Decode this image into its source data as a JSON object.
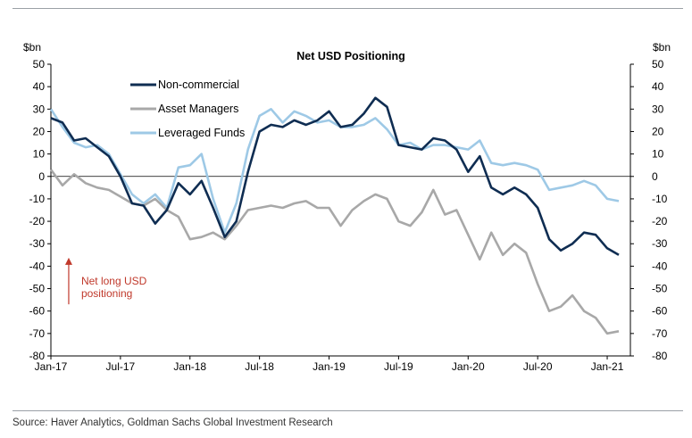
{
  "source": "Source: Haver Analytics, Goldman Sachs Global Investment Research",
  "chart_data": {
    "type": "line",
    "title": "Net USD Positioning",
    "ylabel_left": "$bn",
    "ylabel_right": "$bn",
    "ylim": [
      -80,
      50
    ],
    "yticks": [
      50,
      40,
      30,
      20,
      10,
      0,
      -10,
      -20,
      -30,
      -40,
      -50,
      -60,
      -70,
      -80
    ],
    "xlim": [
      "2017-01",
      "2021-03"
    ],
    "xticks": [
      "Jan-17",
      "Jul-17",
      "Jan-18",
      "Jul-18",
      "Jan-19",
      "Jul-19",
      "Jan-20",
      "Jul-20",
      "Jan-21"
    ],
    "legend_position": "top-left",
    "annotation": {
      "lines": [
        "Net long USD",
        "positioning"
      ],
      "color": "#c0392b",
      "arrow_from": -57,
      "arrow_to": -37,
      "x": "2017-03"
    },
    "series": [
      {
        "name": "Non-commercial",
        "color": "#0f2d52",
        "points": [
          [
            "2017-01",
            26
          ],
          [
            "2017-02",
            24
          ],
          [
            "2017-03",
            16
          ],
          [
            "2017-04",
            17
          ],
          [
            "2017-05",
            13
          ],
          [
            "2017-06",
            9
          ],
          [
            "2017-07",
            0
          ],
          [
            "2017-08",
            -12
          ],
          [
            "2017-09",
            -13
          ],
          [
            "2017-10",
            -21
          ],
          [
            "2017-11",
            -15
          ],
          [
            "2017-12",
            -3
          ],
          [
            "2018-01",
            -8
          ],
          [
            "2018-02",
            -2
          ],
          [
            "2018-03",
            -14
          ],
          [
            "2018-04",
            -27
          ],
          [
            "2018-05",
            -20
          ],
          [
            "2018-06",
            2
          ],
          [
            "2018-07",
            20
          ],
          [
            "2018-08",
            23
          ],
          [
            "2018-09",
            22
          ],
          [
            "2018-10",
            25
          ],
          [
            "2018-11",
            23
          ],
          [
            "2018-12",
            25
          ],
          [
            "2019-01",
            29
          ],
          [
            "2019-02",
            22
          ],
          [
            "2019-03",
            23
          ],
          [
            "2019-04",
            28
          ],
          [
            "2019-05",
            35
          ],
          [
            "2019-06",
            31
          ],
          [
            "2019-07",
            14
          ],
          [
            "2019-08",
            13
          ],
          [
            "2019-09",
            12
          ],
          [
            "2019-10",
            17
          ],
          [
            "2019-11",
            16
          ],
          [
            "2019-12",
            12
          ],
          [
            "2020-01",
            2
          ],
          [
            "2020-02",
            9
          ],
          [
            "2020-03",
            -5
          ],
          [
            "2020-04",
            -8
          ],
          [
            "2020-05",
            -5
          ],
          [
            "2020-06",
            -8
          ],
          [
            "2020-07",
            -14
          ],
          [
            "2020-08",
            -28
          ],
          [
            "2020-09",
            -33
          ],
          [
            "2020-10",
            -30
          ],
          [
            "2020-11",
            -25
          ],
          [
            "2020-12",
            -26
          ],
          [
            "2021-01",
            -32
          ],
          [
            "2021-02",
            -35
          ]
        ]
      },
      {
        "name": "Asset Managers",
        "color": "#a8a8a8",
        "points": [
          [
            "2017-01",
            3
          ],
          [
            "2017-02",
            -4
          ],
          [
            "2017-03",
            1
          ],
          [
            "2017-04",
            -3
          ],
          [
            "2017-05",
            -5
          ],
          [
            "2017-06",
            -6
          ],
          [
            "2017-07",
            -9
          ],
          [
            "2017-08",
            -12
          ],
          [
            "2017-09",
            -13
          ],
          [
            "2017-10",
            -10
          ],
          [
            "2017-11",
            -15
          ],
          [
            "2017-12",
            -18
          ],
          [
            "2018-01",
            -28
          ],
          [
            "2018-02",
            -27
          ],
          [
            "2018-03",
            -25
          ],
          [
            "2018-04",
            -28
          ],
          [
            "2018-05",
            -22
          ],
          [
            "2018-06",
            -15
          ],
          [
            "2018-07",
            -14
          ],
          [
            "2018-08",
            -13
          ],
          [
            "2018-09",
            -14
          ],
          [
            "2018-10",
            -12
          ],
          [
            "2018-11",
            -11
          ],
          [
            "2018-12",
            -14
          ],
          [
            "2019-01",
            -14
          ],
          [
            "2019-02",
            -22
          ],
          [
            "2019-03",
            -15
          ],
          [
            "2019-04",
            -11
          ],
          [
            "2019-05",
            -8
          ],
          [
            "2019-06",
            -10
          ],
          [
            "2019-07",
            -20
          ],
          [
            "2019-08",
            -22
          ],
          [
            "2019-09",
            -16
          ],
          [
            "2019-10",
            -6
          ],
          [
            "2019-11",
            -17
          ],
          [
            "2019-12",
            -15
          ],
          [
            "2020-01",
            -26
          ],
          [
            "2020-02",
            -37
          ],
          [
            "2020-03",
            -25
          ],
          [
            "2020-04",
            -35
          ],
          [
            "2020-05",
            -30
          ],
          [
            "2020-06",
            -34
          ],
          [
            "2020-07",
            -48
          ],
          [
            "2020-08",
            -60
          ],
          [
            "2020-09",
            -58
          ],
          [
            "2020-10",
            -53
          ],
          [
            "2020-11",
            -60
          ],
          [
            "2020-12",
            -63
          ],
          [
            "2021-01",
            -70
          ],
          [
            "2021-02",
            -69
          ]
        ]
      },
      {
        "name": "Leveraged Funds",
        "color": "#9ec9e6",
        "points": [
          [
            "2017-01",
            30
          ],
          [
            "2017-02",
            22
          ],
          [
            "2017-03",
            15
          ],
          [
            "2017-04",
            13
          ],
          [
            "2017-05",
            14
          ],
          [
            "2017-06",
            10
          ],
          [
            "2017-07",
            1
          ],
          [
            "2017-08",
            -8
          ],
          [
            "2017-09",
            -12
          ],
          [
            "2017-10",
            -8
          ],
          [
            "2017-11",
            -14
          ],
          [
            "2017-12",
            4
          ],
          [
            "2018-01",
            5
          ],
          [
            "2018-02",
            10
          ],
          [
            "2018-03",
            -10
          ],
          [
            "2018-04",
            -25
          ],
          [
            "2018-05",
            -12
          ],
          [
            "2018-06",
            12
          ],
          [
            "2018-07",
            27
          ],
          [
            "2018-08",
            30
          ],
          [
            "2018-09",
            24
          ],
          [
            "2018-10",
            29
          ],
          [
            "2018-11",
            27
          ],
          [
            "2018-12",
            24
          ],
          [
            "2019-01",
            25
          ],
          [
            "2019-02",
            22
          ],
          [
            "2019-03",
            22
          ],
          [
            "2019-04",
            23
          ],
          [
            "2019-05",
            26
          ],
          [
            "2019-06",
            21
          ],
          [
            "2019-07",
            14
          ],
          [
            "2019-08",
            15
          ],
          [
            "2019-09",
            12
          ],
          [
            "2019-10",
            14
          ],
          [
            "2019-11",
            14
          ],
          [
            "2019-12",
            13
          ],
          [
            "2020-01",
            12
          ],
          [
            "2020-02",
            16
          ],
          [
            "2020-03",
            6
          ],
          [
            "2020-04",
            5
          ],
          [
            "2020-05",
            6
          ],
          [
            "2020-06",
            5
          ],
          [
            "2020-07",
            3
          ],
          [
            "2020-08",
            -6
          ],
          [
            "2020-09",
            -5
          ],
          [
            "2020-10",
            -4
          ],
          [
            "2020-11",
            -2
          ],
          [
            "2020-12",
            -4
          ],
          [
            "2021-01",
            -10
          ],
          [
            "2021-02",
            -11
          ]
        ]
      }
    ]
  }
}
